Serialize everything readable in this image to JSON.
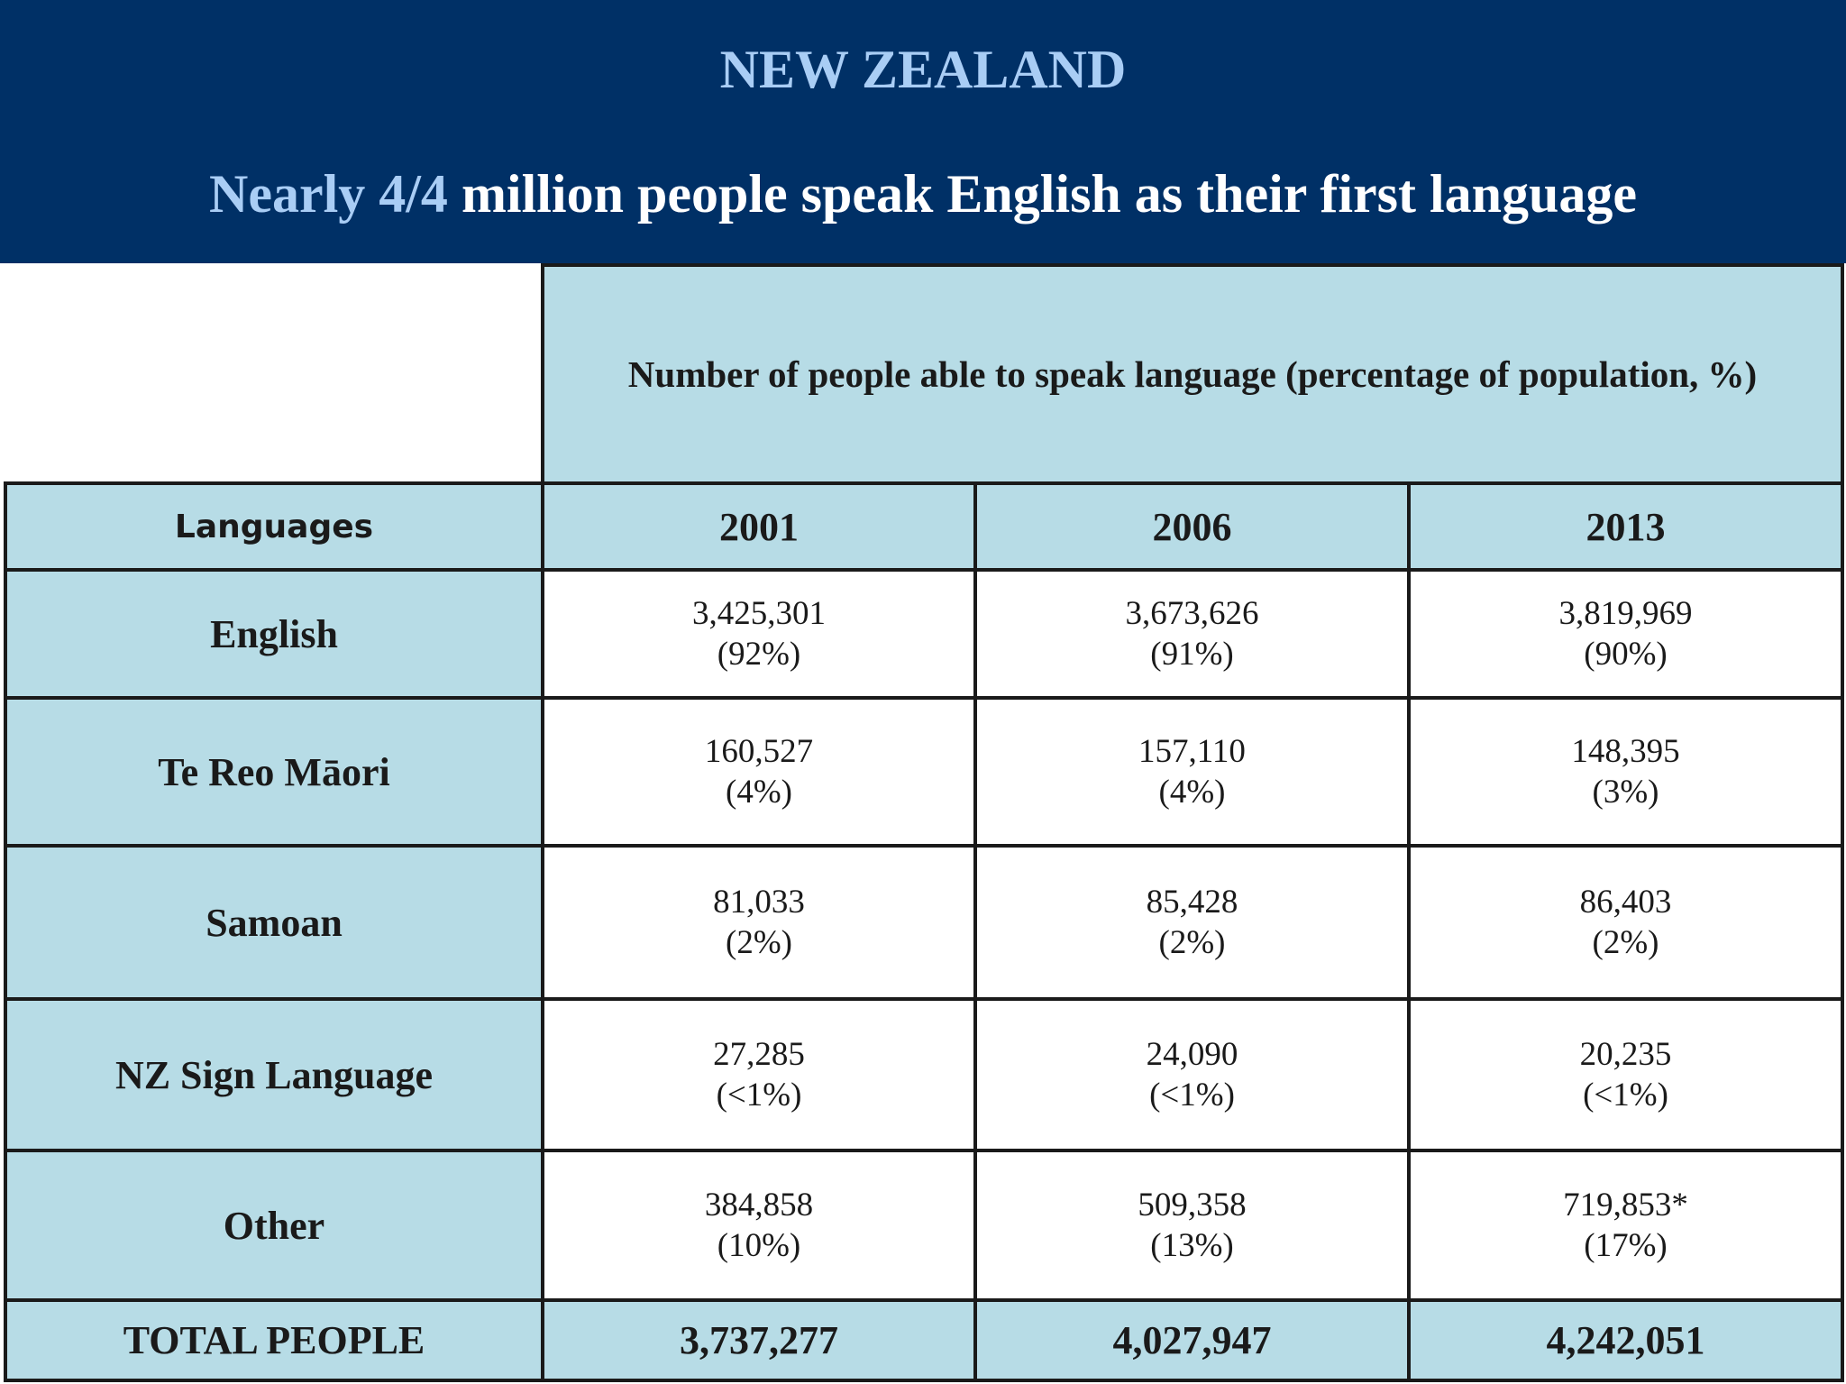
{
  "header": {
    "title": "NEW ZEALAND",
    "subtitle_highlight": "Nearly 4/4",
    "subtitle_rest": " million people speak English as their first language"
  },
  "table": {
    "caption": "Number of people able to speak language (percentage of population, %)",
    "language_header": "Languages",
    "years": [
      "2001",
      "2006",
      "2013"
    ],
    "rows": [
      {
        "language": "English",
        "cells": [
          {
            "count": "3,425,301",
            "pct": "(92%)"
          },
          {
            "count": "3,673,626",
            "pct": "(91%)"
          },
          {
            "count": "3,819,969",
            "pct": "(90%)"
          }
        ]
      },
      {
        "language": "Te Reo Māori",
        "cells": [
          {
            "count": "160,527",
            "pct": "(4%)"
          },
          {
            "count": "157,110",
            "pct": "(4%)"
          },
          {
            "count": "148,395",
            "pct": "(3%)"
          }
        ]
      },
      {
        "language": "Samoan",
        "cells": [
          {
            "count": "81,033",
            "pct": "(2%)"
          },
          {
            "count": "85,428",
            "pct": "(2%)"
          },
          {
            "count": "86,403",
            "pct": "(2%)"
          }
        ]
      },
      {
        "language": "NZ Sign Language",
        "cells": [
          {
            "count": "27,285",
            "pct": "(<1%)"
          },
          {
            "count": "24,090",
            "pct": "(<1%)"
          },
          {
            "count": "20,235",
            "pct": "(<1%)"
          }
        ]
      },
      {
        "language": "Other",
        "cells": [
          {
            "count": "384,858",
            "pct": "(10%)"
          },
          {
            "count": "509,358",
            "pct": "(13%)"
          },
          {
            "count": "719,853*",
            "pct": "(17%)"
          }
        ]
      }
    ],
    "total": {
      "label": "TOTAL PEOPLE",
      "values": [
        "3,737,277",
        "4,027,947",
        "4,242,051"
      ]
    }
  }
}
